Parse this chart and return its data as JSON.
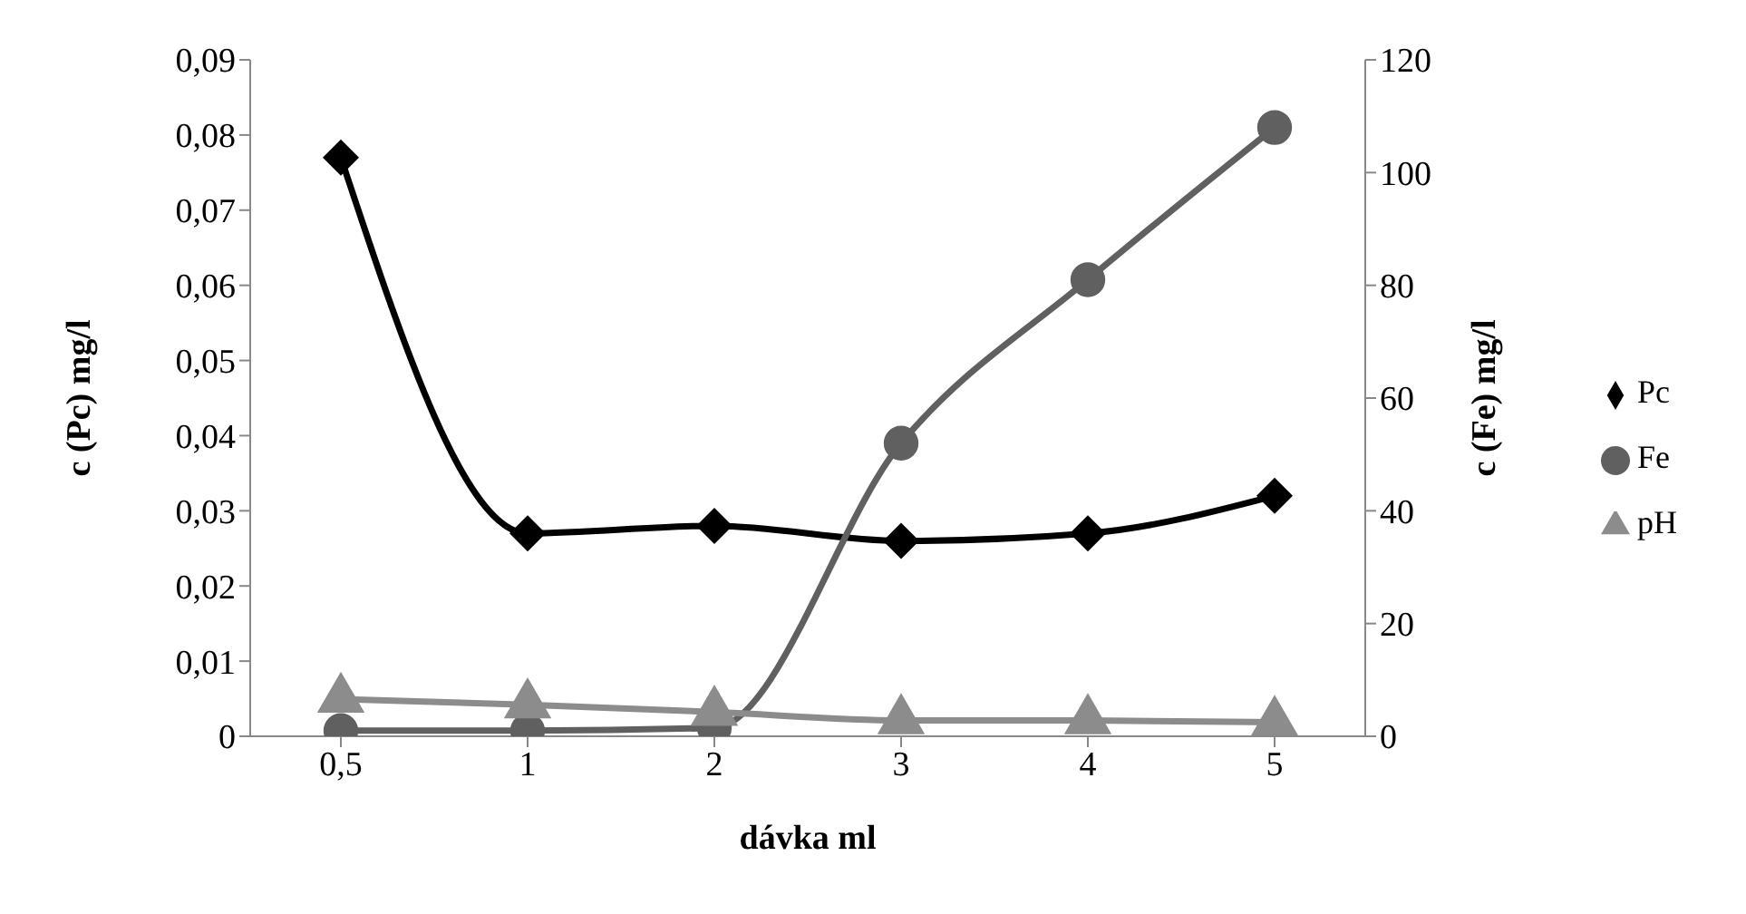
{
  "chart_data": {
    "type": "line",
    "xlabel": "dávka ml",
    "ylabel": "c (Pc) mg/l",
    "y2label": "c (Fe) mg/l",
    "categories": [
      "0,5",
      "1",
      "2",
      "3",
      "4",
      "5"
    ],
    "series": [
      {
        "name": "Pc",
        "color": "#000000",
        "marker": "diamond",
        "values": [
          0.077,
          0.027,
          0.028,
          0.026,
          0.027,
          0.032
        ]
      },
      {
        "name": "Fe",
        "color": "#606060",
        "marker": "circle",
        "axis": "y2",
        "values": [
          1,
          1,
          1.5,
          52,
          81,
          108
        ]
      },
      {
        "name": "pH",
        "color": "#8c8c8c",
        "marker": "triangle",
        "axis": "y2",
        "values": [
          6.6,
          5.6,
          4.3,
          2.8,
          2.8,
          2.5
        ]
      }
    ],
    "ylim": [
      0,
      0.09
    ],
    "yticks": [
      {
        "value": 0,
        "label": "0"
      },
      {
        "value": 0.01,
        "label": "0,01"
      },
      {
        "value": 0.02,
        "label": "0,02"
      },
      {
        "value": 0.03,
        "label": "0,03"
      },
      {
        "value": 0.04,
        "label": "0,04"
      },
      {
        "value": 0.05,
        "label": "0,05"
      },
      {
        "value": 0.06,
        "label": "0,06"
      },
      {
        "value": 0.07,
        "label": "0,07"
      },
      {
        "value": 0.08,
        "label": "0,08"
      },
      {
        "value": 0.09,
        "label": "0,09"
      }
    ],
    "y2lim": [
      0,
      120
    ],
    "y2ticks": [
      0,
      20,
      40,
      60,
      80,
      100,
      120
    ],
    "grid": false,
    "legend": "right"
  }
}
